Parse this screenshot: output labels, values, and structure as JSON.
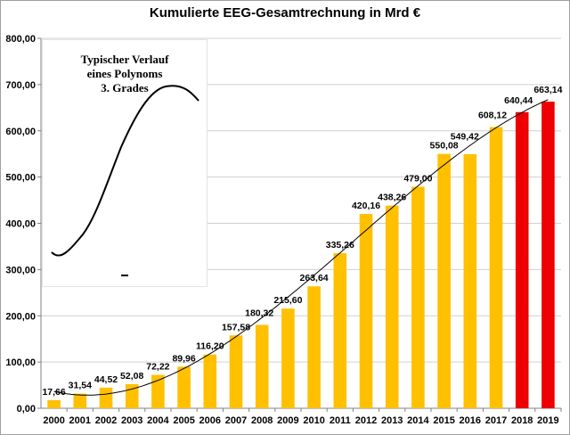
{
  "chart_data": {
    "type": "bar",
    "title": "Kumulierte EEG-Gesamtrechnung in Mrd €",
    "xlabel": "",
    "ylabel": "",
    "ylim": [
      0,
      800
    ],
    "y_ticks": [
      "0,00",
      "100,00",
      "200,00",
      "300,00",
      "400,00",
      "500,00",
      "600,00",
      "700,00",
      "800,00"
    ],
    "grid": true,
    "categories": [
      "2000",
      "2001",
      "2002",
      "2003",
      "2004",
      "2005",
      "2006",
      "2007",
      "2008",
      "2009",
      "2010",
      "2011",
      "2012",
      "2013",
      "2014",
      "2015",
      "2016",
      "2017",
      "2018",
      "2019"
    ],
    "values": [
      17.66,
      31.54,
      44.52,
      52.08,
      72.22,
      89.96,
      116.2,
      157.58,
      180.32,
      215.6,
      263.64,
      335.26,
      420.16,
      438.26,
      479.0,
      550.08,
      549.42,
      608.12,
      640.44,
      663.14
    ],
    "value_labels": [
      "17,66",
      "31,54",
      "44,52",
      "52,08",
      "72,22",
      "89,96",
      "116,20",
      "157,58",
      "180,32",
      "215,60",
      "263,64",
      "335,26",
      "420,16",
      "438,26",
      "479,00",
      "550,08",
      "549,42",
      "608,12",
      "640,44",
      "663,14"
    ],
    "bar_colors": [
      "#ffc000",
      "#ffc000",
      "#ffc000",
      "#ffc000",
      "#ffc000",
      "#ffc000",
      "#ffc000",
      "#ffc000",
      "#ffc000",
      "#ffc000",
      "#ffc000",
      "#ffc000",
      "#ffc000",
      "#ffc000",
      "#ffc000",
      "#ffc000",
      "#ffc000",
      "#ffc000",
      "#ee0000",
      "#ee0000"
    ],
    "trendline": "polynomial, order 3",
    "inset_text": [
      "Typischer Verlauf",
      "eines Polynoms",
      "3. Grades"
    ]
  }
}
